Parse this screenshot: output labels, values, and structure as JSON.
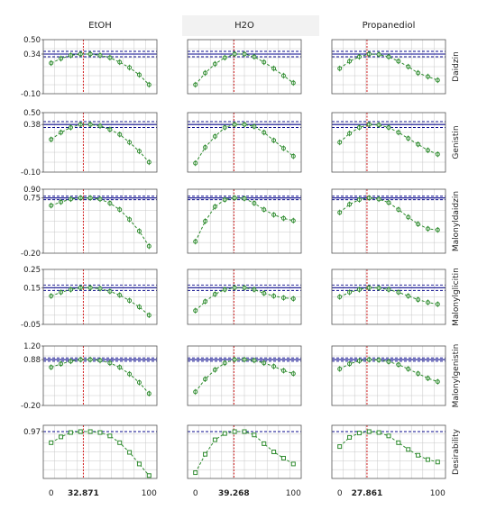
{
  "chart_data": {
    "type": "line",
    "columns": [
      "EtOH",
      "H2O",
      "Propanediol"
    ],
    "rows": [
      {
        "label": "Daidzin",
        "ylim": [
          -0.1,
          0.5
        ],
        "y_ticks": [
          "0.50",
          "0.34",
          "-0.10"
        ],
        "tick_values": [
          0.5,
          0.34,
          -0.1
        ],
        "predicted": 0.34,
        "ci": [
          0.31,
          0.37
        ],
        "pred_line": "solid"
      },
      {
        "label": "Genistin",
        "ylim": [
          -0.1,
          0.5
        ],
        "y_ticks": [
          "0.50",
          "0.38",
          "-0.10"
        ],
        "tick_values": [
          0.5,
          0.38,
          -0.1
        ],
        "predicted": 0.38,
        "ci": [
          0.35,
          0.41
        ],
        "pred_line": "solid"
      },
      {
        "label": "Malonyldaidzin",
        "ylim": [
          -0.2,
          0.9
        ],
        "y_ticks": [
          "0.90",
          "0.75",
          "-0.20"
        ],
        "tick_values": [
          0.9,
          0.75,
          -0.2
        ],
        "predicted": 0.75,
        "ci": [
          0.72,
          0.78
        ],
        "pred_line": "solid"
      },
      {
        "label": "Malonylglicitin",
        "ylim": [
          -0.05,
          0.25
        ],
        "y_ticks": [
          "0.25",
          "0.15",
          "-0.05"
        ],
        "tick_values": [
          0.25,
          0.15,
          -0.05
        ],
        "predicted": 0.15,
        "ci": [
          0.135,
          0.165
        ],
        "pred_line": "solid"
      },
      {
        "label": "Malonylgenistin",
        "ylim": [
          -0.2,
          1.2
        ],
        "y_ticks": [
          "1.20",
          "0.88",
          "-0.20"
        ],
        "tick_values": [
          1.2,
          0.88,
          -0.2
        ],
        "predicted": 0.88,
        "ci": [
          0.84,
          0.92
        ],
        "pred_line": "solid"
      },
      {
        "label": "Desirability",
        "ylim": [
          0.0,
          1.1
        ],
        "y_ticks": [
          "0.97"
        ],
        "tick_values": [
          0.97
        ],
        "predicted": 0.97,
        "ci": null,
        "pred_line": "dashed"
      }
    ],
    "x": [
      0,
      10,
      20,
      30,
      40,
      50,
      60,
      70,
      80,
      90,
      100
    ],
    "xlim": [
      -8,
      108
    ],
    "x_ticks": [
      {
        "value": 0,
        "label": "0",
        "bold": false
      },
      {
        "value": 100,
        "label": "100",
        "bold": false
      }
    ],
    "optimum": [
      {
        "column": "EtOH",
        "value": 32.871,
        "label": "32.871"
      },
      {
        "column": "H2O",
        "value": 39.268,
        "label": "39.268"
      },
      {
        "column": "Propanediol",
        "value": 27.861,
        "label": "27.861"
      }
    ],
    "series": [
      [
        [
          0.24,
          0.29,
          0.325,
          0.34,
          0.34,
          0.325,
          0.3,
          0.25,
          0.19,
          0.11,
          0.0
        ],
        [
          0.0,
          0.13,
          0.23,
          0.3,
          0.34,
          0.34,
          0.31,
          0.25,
          0.18,
          0.1,
          0.02
        ],
        [
          0.18,
          0.26,
          0.31,
          0.34,
          0.335,
          0.31,
          0.26,
          0.2,
          0.13,
          0.09,
          0.05
        ]
      ],
      [
        [
          0.23,
          0.3,
          0.35,
          0.38,
          0.38,
          0.365,
          0.33,
          0.28,
          0.2,
          0.11,
          0.0
        ],
        [
          -0.01,
          0.15,
          0.26,
          0.35,
          0.38,
          0.38,
          0.36,
          0.3,
          0.22,
          0.14,
          0.06
        ],
        [
          0.2,
          0.29,
          0.35,
          0.38,
          0.375,
          0.35,
          0.3,
          0.24,
          0.18,
          0.12,
          0.08
        ]
      ],
      [
        [
          0.62,
          0.68,
          0.73,
          0.75,
          0.75,
          0.73,
          0.66,
          0.55,
          0.38,
          0.18,
          -0.08
        ],
        [
          0.0,
          0.35,
          0.6,
          0.72,
          0.75,
          0.74,
          0.66,
          0.55,
          0.46,
          0.4,
          0.36
        ],
        [
          0.5,
          0.64,
          0.72,
          0.75,
          0.73,
          0.67,
          0.55,
          0.42,
          0.3,
          0.22,
          0.2
        ]
      ],
      [
        [
          0.105,
          0.125,
          0.14,
          0.15,
          0.15,
          0.145,
          0.13,
          0.11,
          0.08,
          0.045,
          0.0
        ],
        [
          0.025,
          0.075,
          0.115,
          0.14,
          0.15,
          0.15,
          0.14,
          0.12,
          0.105,
          0.095,
          0.09
        ],
        [
          0.1,
          0.125,
          0.14,
          0.15,
          0.148,
          0.14,
          0.125,
          0.105,
          0.085,
          0.07,
          0.06
        ]
      ],
      [
        [
          0.7,
          0.78,
          0.84,
          0.88,
          0.88,
          0.86,
          0.8,
          0.7,
          0.54,
          0.34,
          0.08
        ],
        [
          0.12,
          0.42,
          0.64,
          0.8,
          0.88,
          0.88,
          0.86,
          0.8,
          0.72,
          0.62,
          0.55
        ],
        [
          0.66,
          0.78,
          0.85,
          0.88,
          0.87,
          0.83,
          0.76,
          0.66,
          0.55,
          0.44,
          0.36
        ]
      ],
      [
        [
          0.74,
          0.86,
          0.95,
          0.97,
          0.97,
          0.95,
          0.88,
          0.74,
          0.54,
          0.3,
          0.06
        ],
        [
          0.12,
          0.5,
          0.8,
          0.93,
          0.97,
          0.97,
          0.9,
          0.72,
          0.55,
          0.42,
          0.3
        ],
        [
          0.66,
          0.85,
          0.94,
          0.97,
          0.95,
          0.88,
          0.74,
          0.6,
          0.48,
          0.39,
          0.34
        ]
      ]
    ],
    "colors": {
      "curve": "#2e8b2e",
      "limit_line": "#0a0a8c",
      "optimum_line": "#cc0000",
      "grid": "#c8c8c8",
      "header_bg": "#f2f2f2"
    }
  }
}
